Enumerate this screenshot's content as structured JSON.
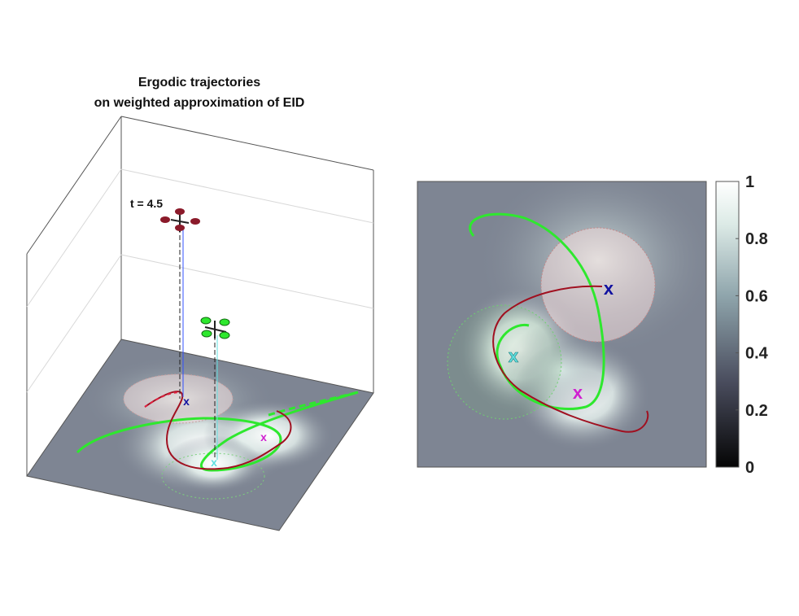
{
  "chart_data": [
    {
      "type": "heatmap",
      "view": "3d",
      "title_line1": "Ergodic trajectories",
      "title_line2": "on weighted approximation of EID",
      "time_label": "t = 4.5",
      "grid": true
    },
    {
      "type": "heatmap",
      "view": "2d",
      "colorbar": {
        "ticks": [
          "0",
          "0.2",
          "0.4",
          "0.6",
          "0.8",
          "1"
        ],
        "range": [
          0,
          1
        ],
        "colormap": [
          "#050505",
          "#5c6270",
          "#c9ddd8",
          "#ffffff"
        ]
      },
      "targets": [
        {
          "marker": "x",
          "color": "#1010a0"
        },
        {
          "marker": "x",
          "color": "#60e0e0"
        },
        {
          "marker": "x",
          "color": "#d020d0"
        }
      ],
      "series": [
        {
          "color": "#2ee82e"
        },
        {
          "color": "#a01020"
        }
      ]
    }
  ]
}
